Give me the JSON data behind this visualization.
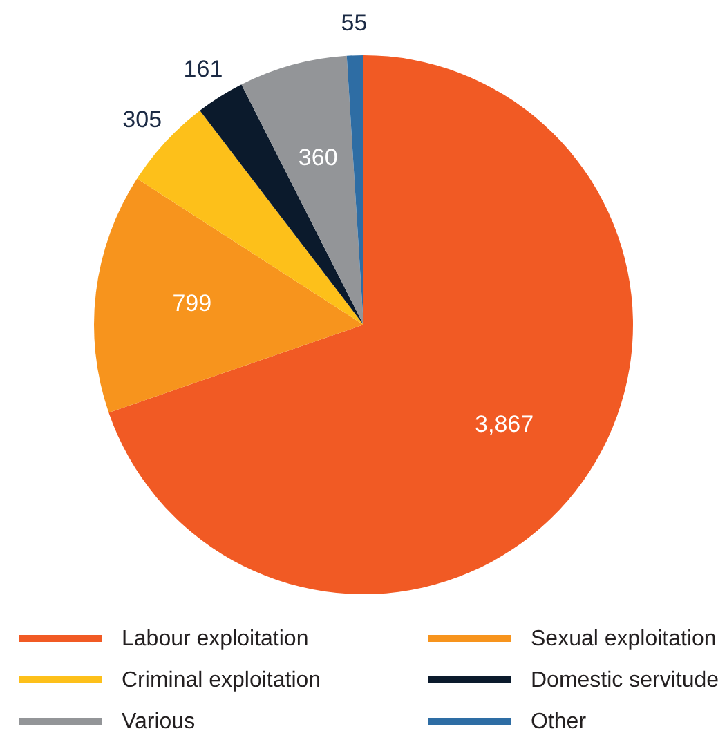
{
  "chart_data": {
    "type": "pie",
    "categories": [
      "Labour exploitation",
      "Sexual exploitation",
      "Criminal exploitation",
      "Domestic servitude",
      "Various",
      "Other"
    ],
    "values": [
      3867,
      799,
      305,
      161,
      360,
      55
    ],
    "colors": [
      "#f15a24",
      "#f7941d",
      "#fdc01a",
      "#0b1a2c",
      "#939598",
      "#2e6da4"
    ],
    "value_labels": [
      "3,867",
      "799",
      "305",
      "161",
      "360",
      "55"
    ],
    "legend": "bottom"
  }
}
